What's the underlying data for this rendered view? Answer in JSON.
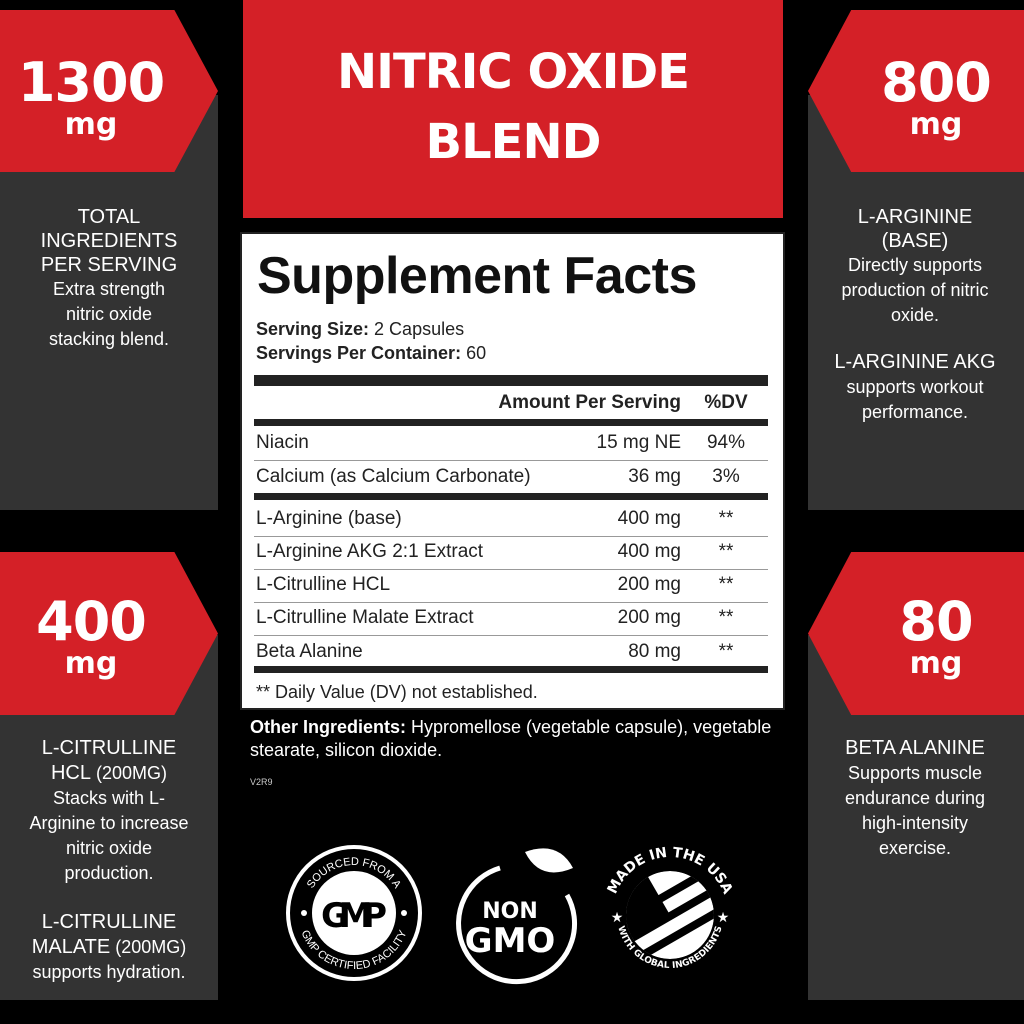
{
  "header": {
    "line1": "NITRIC OXIDE",
    "line2": "BLEND"
  },
  "colors": {
    "red": "#d42027",
    "panel": "#333333",
    "background": "#000000"
  },
  "callouts": [
    {
      "amount": "1300",
      "unit": "mg",
      "title": "TOTAL INGREDIENTS PER SERVING",
      "text": "Extra strength nitric oxide stacking blend."
    },
    {
      "amount": "400",
      "unit": "mg",
      "title": "L-CITRULLINE HCL",
      "title_suffix": " (200MG)",
      "text": "Stacks with L-Arginine to increase nitric oxide production.",
      "title2": "L-CITRULLINE MALATE",
      "title2_suffix": " (200MG)",
      "text2": "supports hydration."
    },
    {
      "amount": "800",
      "unit": "mg",
      "title": "L-ARGININE (BASE)",
      "text": "Directly supports production of nitric oxide.",
      "title2": "L-ARGININE AKG",
      "text2": "supports workout performance."
    },
    {
      "amount": "80",
      "unit": "mg",
      "title": "BETA ALANINE",
      "text": "Supports muscle endurance during high-intensity exercise."
    }
  ],
  "facts": {
    "title": "Supplement Facts",
    "serving_size_label": "Serving Size:",
    "serving_size": " 2 Capsules",
    "servings_label": "Servings Per Container:",
    "servings": " 60",
    "col_amount": "Amount Per Serving",
    "col_dv": "%DV",
    "rows": [
      {
        "name": "Niacin",
        "amount": "15 mg NE",
        "dv": "94%"
      },
      {
        "name": "Calcium (as Calcium Carbonate)",
        "amount": "36 mg",
        "dv": "3%"
      },
      {
        "name": "L-Arginine (base)",
        "amount": "400 mg",
        "dv": "**"
      },
      {
        "name": "L-Arginine AKG 2:1 Extract",
        "amount": "400 mg",
        "dv": "**"
      },
      {
        "name": "L-Citrulline HCL",
        "amount": "200 mg",
        "dv": "**"
      },
      {
        "name": "L-Citrulline Malate Extract",
        "amount": "200 mg",
        "dv": "**"
      },
      {
        "name": "Beta Alanine",
        "amount": "80 mg",
        "dv": "**"
      }
    ],
    "footnote": "** Daily Value (DV) not established."
  },
  "other": {
    "label": "Other Ingredients:",
    "text": " Hypromellose (vegetable capsule), vegetable stearate, silicon dioxide."
  },
  "code": "V2R9",
  "badges": {
    "gmp": {
      "top": "SOURCED FROM A",
      "center": "GMP",
      "bottom": "GMP CERTIFIED FACILITY"
    },
    "nongmo": {
      "line1": "NON",
      "line2": "GMO"
    },
    "usa": {
      "top": "MADE IN THE USA",
      "bottom": "WITH GLOBAL INGREDIENTS"
    }
  }
}
